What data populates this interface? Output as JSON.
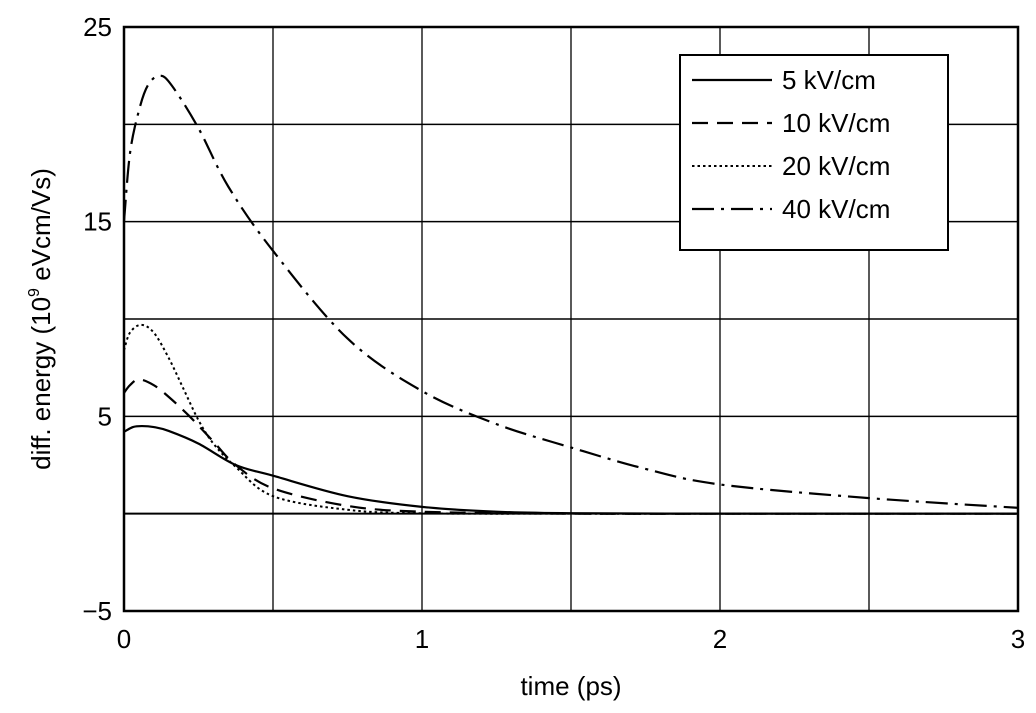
{
  "chart_data": {
    "type": "line",
    "title": "",
    "xlabel": "time (ps)",
    "ylabel_main": "diff. energy  (10",
    "ylabel_sup": "9",
    "ylabel_tail": " eVcm/Vs)",
    "xlim": [
      0,
      3
    ],
    "ylim": [
      -5,
      25
    ],
    "xticks": [
      0,
      1,
      2,
      3
    ],
    "xtick_labels": [
      "0",
      "1",
      "2",
      "3"
    ],
    "yticks": [
      25,
      15,
      5,
      -5
    ],
    "ytick_labels": [
      "25",
      "15",
      "5",
      "−5"
    ],
    "xgrid": [
      0,
      0.5,
      1,
      1.5,
      2,
      2.5,
      3
    ],
    "ygrid": [
      -5,
      0,
      5,
      10,
      15,
      20,
      25
    ],
    "grid": true,
    "legend_position": "top-right",
    "series": [
      {
        "name": "5 kV/cm",
        "style": "solid",
        "x": [
          0,
          0.03,
          0.06,
          0.1,
          0.15,
          0.25,
          0.375,
          0.5,
          0.75,
          1.0,
          1.25,
          1.5,
          2,
          2.5,
          3
        ],
        "y": [
          4.2,
          4.45,
          4.5,
          4.45,
          4.25,
          3.6,
          2.5,
          1.95,
          0.9,
          0.35,
          0.1,
          0.02,
          0,
          0,
          0
        ]
      },
      {
        "name": "10 kV/cm",
        "style": "dashed",
        "x": [
          0,
          0.02,
          0.05,
          0.1,
          0.15,
          0.22,
          0.3,
          0.375,
          0.5,
          0.75,
          1.0,
          1.5,
          2,
          2.5,
          3
        ],
        "y": [
          6.2,
          6.6,
          6.9,
          6.6,
          6.0,
          5.0,
          3.7,
          2.5,
          1.3,
          0.4,
          0.1,
          0,
          0,
          0,
          0
        ]
      },
      {
        "name": "20 kV/cm",
        "style": "dotted",
        "x": [
          0,
          0.02,
          0.057,
          0.1,
          0.15,
          0.2,
          0.25,
          0.3,
          0.375,
          0.5,
          0.75,
          1.0,
          1.5,
          2,
          3
        ],
        "y": [
          8.4,
          9.3,
          9.7,
          9.3,
          8.0,
          6.4,
          4.8,
          3.6,
          2.4,
          0.9,
          0.2,
          0.02,
          0,
          0,
          0
        ]
      },
      {
        "name": "40 kV/cm",
        "style": "dashdot",
        "x": [
          0,
          0.02,
          0.05,
          0.08,
          0.119,
          0.16,
          0.25,
          0.35,
          0.5,
          0.75,
          1.0,
          1.25,
          1.5,
          1.75,
          2,
          2.5,
          3
        ],
        "y": [
          15.0,
          18.5,
          20.7,
          22.0,
          22.5,
          22.0,
          19.8,
          16.8,
          13.5,
          9.0,
          6.3,
          4.6,
          3.4,
          2.3,
          1.5,
          0.8,
          0.3
        ]
      }
    ]
  }
}
